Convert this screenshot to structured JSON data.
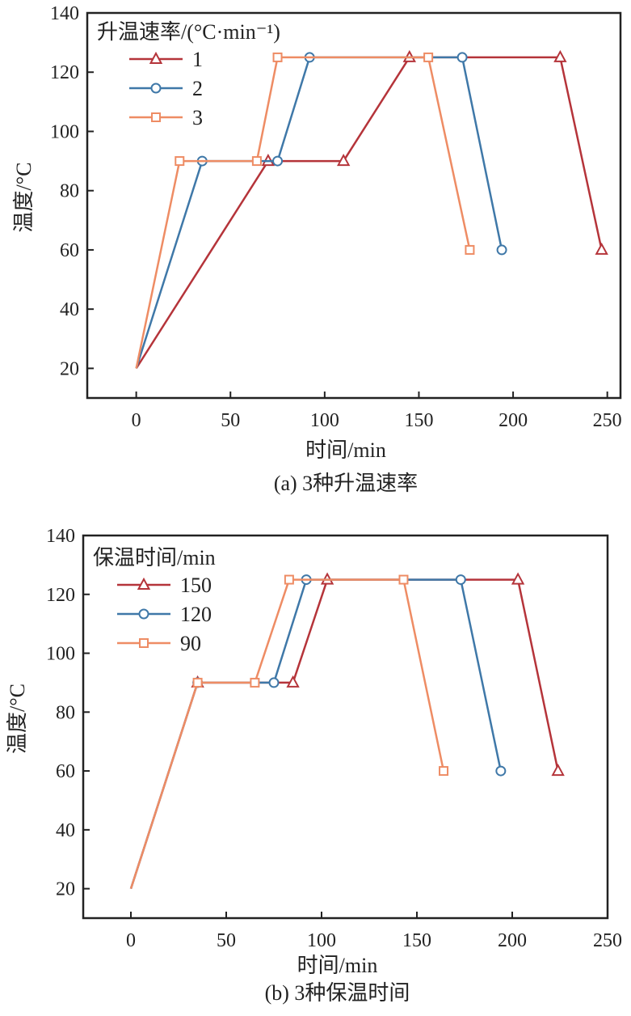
{
  "chart_data": [
    {
      "type": "line",
      "caption": "(a) 3种升温速率",
      "xlabel": "时间/min",
      "ylabel": "温度/°C",
      "xlim": [
        -26,
        257
      ],
      "ylim": [
        10,
        140
      ],
      "xticks": [
        0,
        50,
        100,
        150,
        200,
        250
      ],
      "yticks": [
        20,
        40,
        60,
        80,
        100,
        120,
        140
      ],
      "grid": false,
      "legend_title": "升温速率/(°C·min⁻¹)",
      "legend_position": "top-left",
      "series": [
        {
          "name": "1",
          "color": "#b5343a",
          "marker": "triangle",
          "x": [
            0,
            70,
            110,
            145,
            225,
            247
          ],
          "y": [
            20,
            90,
            90,
            125,
            125,
            60
          ]
        },
        {
          "name": "2",
          "color": "#3f78a8",
          "marker": "circle",
          "x": [
            0,
            35,
            75,
            92,
            173,
            194
          ],
          "y": [
            20,
            90,
            90,
            125,
            125,
            60
          ]
        },
        {
          "name": "3",
          "color": "#ee8c64",
          "marker": "square",
          "x": [
            0,
            23,
            64,
            75,
            155,
            177
          ],
          "y": [
            20,
            90,
            90,
            125,
            125,
            60
          ]
        }
      ]
    },
    {
      "type": "line",
      "caption": "(b) 3种保温时间",
      "xlabel": "时间/min",
      "ylabel": "温度/°C",
      "xlim": [
        -25,
        250
      ],
      "ylim": [
        10,
        140
      ],
      "xticks": [
        0,
        50,
        100,
        150,
        200,
        250
      ],
      "yticks": [
        20,
        40,
        60,
        80,
        100,
        120,
        140
      ],
      "grid": false,
      "legend_title": "保温时间/min",
      "legend_position": "top-left",
      "series": [
        {
          "name": "150",
          "color": "#b5343a",
          "marker": "triangle",
          "x": [
            0,
            35,
            85,
            103,
            203,
            224
          ],
          "y": [
            20,
            90,
            90,
            125,
            125,
            60
          ]
        },
        {
          "name": "120",
          "color": "#3f78a8",
          "marker": "circle",
          "x": [
            0,
            35,
            75,
            92,
            173,
            194
          ],
          "y": [
            20,
            90,
            90,
            125,
            125,
            60
          ]
        },
        {
          "name": "90",
          "color": "#ee8c64",
          "marker": "square",
          "x": [
            0,
            35,
            65,
            83,
            143,
            164
          ],
          "y": [
            20,
            90,
            90,
            125,
            125,
            60
          ]
        }
      ]
    }
  ]
}
